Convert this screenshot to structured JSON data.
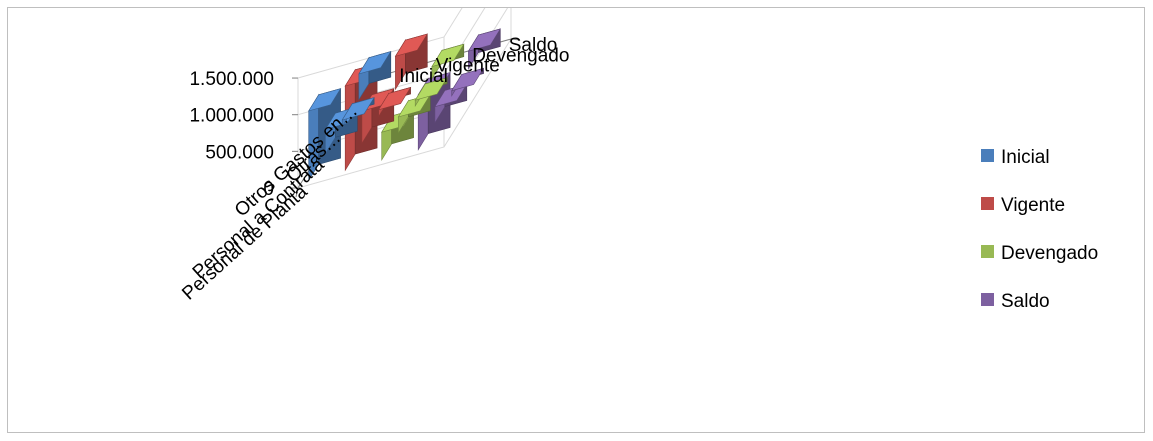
{
  "chart_data": {
    "type": "bar",
    "subtype": "3d-column",
    "title": "",
    "categories": [
      "Personal de Planta",
      "Personal a Contrata",
      "Otras…",
      "Otros Gastos en…"
    ],
    "depth_labels": [
      "Inicial",
      "Vigente",
      "Devengado",
      "Saldo"
    ],
    "y_ticks": [
      "0",
      "500.000",
      "1.000.000",
      "1.500.000"
    ],
    "ylim": [
      0,
      1500000
    ],
    "legend_position": "right",
    "series": [
      {
        "name": "Inicial",
        "color": "#4a7ebb",
        "values": [
          950000,
          330000,
          90000,
          350000
        ]
      },
      {
        "name": "Vigente",
        "color": "#be4b48",
        "values": [
          1150000,
          440000,
          90000,
          450000
        ]
      },
      {
        "name": "Devengado",
        "color": "#98b954",
        "values": [
          380000,
          220000,
          80000,
          170000
        ]
      },
      {
        "name": "Saldo",
        "color": "#7d60a0",
        "values": [
          750000,
          220000,
          70000,
          240000
        ]
      }
    ]
  }
}
